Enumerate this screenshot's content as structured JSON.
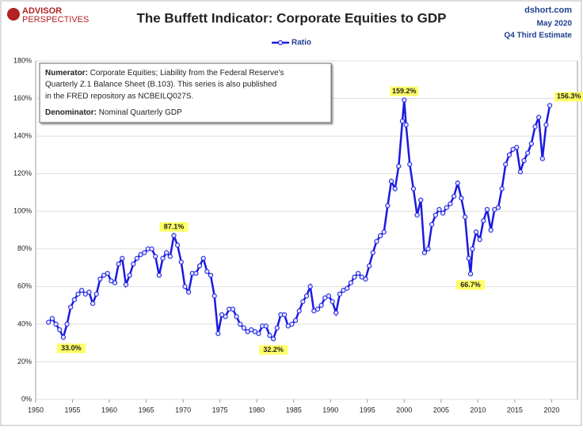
{
  "chart_data": {
    "type": "line",
    "title": "The Buffett Indicator: Corporate Equities to GDP",
    "brand": [
      "ADVISOR",
      "PERSPECTIVES"
    ],
    "source": [
      "dshort.com",
      "May 2020",
      "Q4 Third Estimate"
    ],
    "note": {
      "numerator_label": "Numerator:",
      "numerator_lines": [
        " Corporate Equities; Liability from the Federal Reserve's",
        "Quarterly Z.1 Balance Sheet (B.103). This series is also published",
        "in the FRED repository  as NCBEILQ027S."
      ],
      "denominator_label": "Denominator:",
      "denominator_text": " Nominal Quarterly GDP"
    },
    "xlim": [
      1950,
      2023.5
    ],
    "xticks": [
      1950,
      1955,
      1960,
      1965,
      1970,
      1975,
      1980,
      1985,
      1990,
      1995,
      2000,
      2005,
      2010,
      2015,
      2020
    ],
    "ylim": [
      0,
      180
    ],
    "yticks": [
      {
        "value": 0,
        "label": "0%"
      },
      {
        "value": 20,
        "label": "20%"
      },
      {
        "value": 40,
        "label": "40%"
      },
      {
        "value": 60,
        "label": "60%"
      },
      {
        "value": 80,
        "label": "80%"
      },
      {
        "value": 100,
        "label": "100%"
      },
      {
        "value": 120,
        "label": "120%"
      },
      {
        "value": 140,
        "label": "140%"
      },
      {
        "value": 160,
        "label": "160%"
      },
      {
        "value": 180,
        "label": "180%"
      }
    ],
    "grid": true,
    "x": [
      1951.75,
      1952.25,
      1952.75,
      1953.25,
      1953.75,
      1954.25,
      1954.75,
      1955.25,
      1955.75,
      1956.25,
      1956.75,
      1957.25,
      1957.75,
      1958.25,
      1958.75,
      1959.25,
      1959.75,
      1960.25,
      1960.75,
      1961.25,
      1961.75,
      1962.25,
      1962.75,
      1963.25,
      1963.75,
      1964.25,
      1964.75,
      1965.25,
      1965.75,
      1966.25,
      1966.75,
      1967.25,
      1967.75,
      1968.25,
      1968.75,
      1969.25,
      1969.75,
      1970.25,
      1970.75,
      1971.25,
      1971.75,
      1972.25,
      1972.75,
      1973.25,
      1973.75,
      1974.25,
      1974.75,
      1975.25,
      1975.75,
      1976.25,
      1976.75,
      1977.25,
      1977.75,
      1978.25,
      1978.75,
      1979.25,
      1979.75,
      1980.25,
      1980.75,
      1981.25,
      1981.75,
      1982.25,
      1982.75,
      1983.25,
      1983.75,
      1984.25,
      1984.75,
      1985.25,
      1985.75,
      1986.25,
      1986.75,
      1987.25,
      1987.75,
      1988.25,
      1988.75,
      1989.25,
      1989.75,
      1990.25,
      1990.75,
      1991.25,
      1991.75,
      1992.25,
      1992.75,
      1993.25,
      1993.75,
      1994.25,
      1994.75,
      1995.25,
      1995.75,
      1996.25,
      1996.75,
      1997.25,
      1997.75,
      1998.25,
      1998.75,
      1999.25,
      1999.75,
      2000.0,
      2000.25,
      2000.75,
      2001.25,
      2001.75,
      2002.25,
      2002.75,
      2003.25,
      2003.75,
      2004.25,
      2004.75,
      2005.25,
      2005.75,
      2006.25,
      2006.75,
      2007.25,
      2007.75,
      2008.25,
      2008.75,
      2009.0,
      2009.25,
      2009.75,
      2010.25,
      2010.75,
      2011.25,
      2011.75,
      2012.25,
      2012.75,
      2013.25,
      2013.75,
      2014.25,
      2014.75,
      2015.25,
      2015.75,
      2016.25,
      2016.75,
      2017.25,
      2017.75,
      2018.25,
      2018.75,
      2019.25,
      2019.75
    ],
    "series": [
      {
        "name": "Ratio",
        "color": "#1a1ae0",
        "values": [
          41,
          43,
          40,
          37,
          33.0,
          40,
          49,
          53,
          56,
          58,
          56,
          57,
          51,
          56,
          64,
          66,
          67,
          63,
          62,
          72,
          75,
          61,
          66,
          72,
          75,
          77,
          78,
          80,
          80,
          76,
          66,
          75,
          78,
          76,
          87.1,
          82,
          73,
          60,
          57,
          67,
          67,
          71,
          75,
          68,
          66,
          55,
          35,
          45,
          44,
          48,
          48,
          44,
          40,
          38,
          36,
          37,
          36,
          35,
          39,
          39,
          34,
          32.2,
          38,
          45,
          45,
          39,
          40,
          42,
          47,
          52,
          55,
          60,
          47,
          48,
          50,
          54,
          55,
          52,
          46,
          56,
          58,
          59,
          62,
          65,
          67,
          65,
          64,
          71,
          78,
          84,
          87,
          89,
          103,
          116,
          112,
          124,
          148,
          159.2,
          146,
          125,
          112,
          98,
          106,
          78,
          80,
          93,
          98,
          101,
          99,
          102,
          104,
          108,
          115,
          107,
          97,
          75,
          66.7,
          80,
          89,
          85,
          95,
          101,
          90,
          101,
          102,
          112,
          125,
          130,
          133,
          134,
          121,
          127,
          131,
          136,
          145,
          150,
          128,
          146,
          156.3
        ]
      }
    ],
    "annotations": [
      {
        "x": 1953.75,
        "label": "33.0%"
      },
      {
        "x": 1968.75,
        "label": "87.1%"
      },
      {
        "x": 1982.25,
        "label": "32.2%"
      },
      {
        "x": 2000.0,
        "label": "159.2%"
      },
      {
        "x": 2009.0,
        "label": "66.7%"
      },
      {
        "x": 2019.75,
        "label": "156.3%"
      }
    ]
  }
}
